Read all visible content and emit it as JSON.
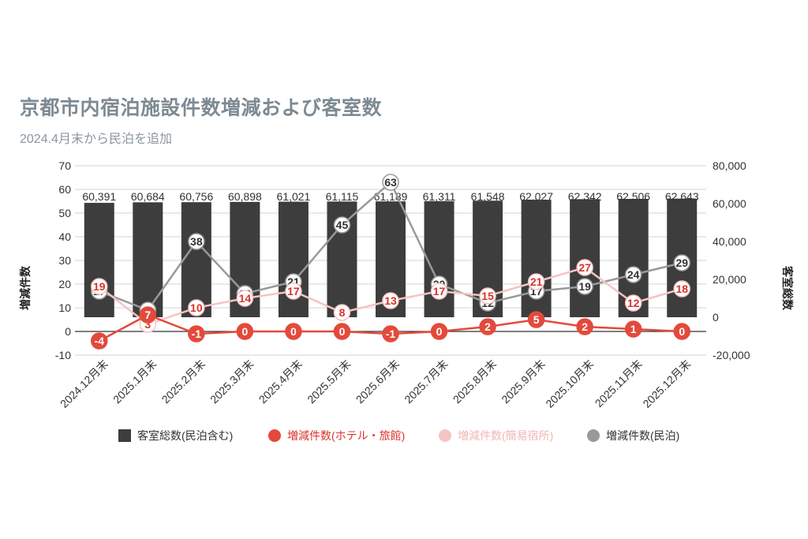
{
  "chart_data": {
    "type": "bar+line",
    "title": "京都市内宿泊施設件数増減および客室数",
    "subtitle": "2024.4月末から民泊を追加",
    "categories": [
      "2024.12月末",
      "2025.1月末",
      "2025.2月末",
      "2025.3月末",
      "2025.4月末",
      "2025.5月末",
      "2025.6月末",
      "2025.7月末",
      "2025.8月末",
      "2025.9月末",
      "2025.10月末",
      "2025.11月末",
      "2025.12月末"
    ],
    "left_axis": {
      "title": "増減件数",
      "min": -10,
      "max": 70,
      "ticks": [
        "70",
        "60",
        "50",
        "40",
        "30",
        "20",
        "10",
        "0",
        "-10"
      ]
    },
    "right_axis": {
      "title": "客室総数",
      "min": -20000,
      "max": 80000,
      "ticks": [
        "80,000",
        "60,000",
        "40,000",
        "20,000",
        "0",
        "-20,000"
      ]
    },
    "bars": {
      "name": "客室総数(民泊含む)",
      "color": "#3d3d3d",
      "values": [
        60391,
        60684,
        60756,
        60898,
        61021,
        61115,
        61189,
        61311,
        61548,
        62027,
        62342,
        62506,
        62643
      ],
      "labels": [
        "60,391",
        "60,684",
        "60,756",
        "60,898",
        "61,021",
        "61,115",
        "61,189",
        "61,311",
        "61,548",
        "62,027",
        "62,342",
        "62,506",
        "62,643"
      ]
    },
    "series": [
      {
        "name": "増減件数(ホテル・旅館)",
        "color": "#e34a3b",
        "label_bg": "#e34a3b",
        "label_color": "#ffffff",
        "values": [
          -4,
          7,
          -1,
          0,
          0,
          0,
          -1,
          0,
          2,
          5,
          2,
          1,
          0
        ]
      },
      {
        "name": "増減件数(簡易宿所)",
        "color": "#f4c4c2",
        "label_bg": "#ffffff",
        "label_color": "#d9322c",
        "values": [
          19,
          3,
          10,
          14,
          17,
          8,
          13,
          17,
          15,
          21,
          27,
          12,
          18
        ]
      },
      {
        "name": "増減件数(民泊)",
        "color": "#999999",
        "label_bg": "#ffffff",
        "label_color": "#333333",
        "values": [
          17,
          9,
          38,
          16,
          21,
          45,
          63,
          20,
          12,
          17,
          19,
          24,
          29
        ]
      }
    ],
    "legend": {
      "position": "bottom"
    }
  }
}
